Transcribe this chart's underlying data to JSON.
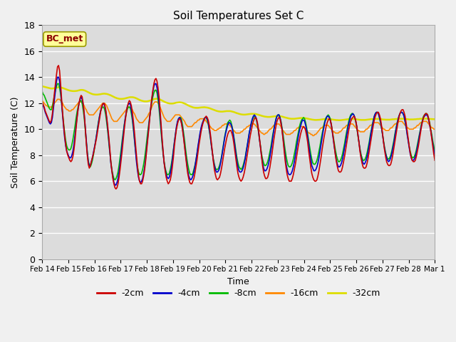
{
  "title": "Soil Temperatures Set C",
  "xlabel": "Time",
  "ylabel": "Soil Temperature (C)",
  "ylim": [
    0,
    18
  ],
  "fig_facecolor": "#f0f0f0",
  "ax_facecolor": "#e0e0e0",
  "annotation": "BC_met",
  "series": {
    "-2cm": {
      "color": "#cc0000",
      "lw": 1.2
    },
    "-4cm": {
      "color": "#0000cc",
      "lw": 1.2
    },
    "-8cm": {
      "color": "#00bb00",
      "lw": 1.2
    },
    "-16cm": {
      "color": "#ff8800",
      "lw": 1.2
    },
    "-32cm": {
      "color": "#dddd00",
      "lw": 1.8
    }
  },
  "xticks": [
    "Feb 14",
    "Feb 15",
    "Feb 16",
    "Feb 17",
    "Feb 18",
    "Feb 19",
    "Feb 20",
    "Feb 21",
    "Feb 22",
    "Feb 23",
    "Feb 24",
    "Feb 25",
    "Feb 26",
    "Feb 27",
    "Feb 28",
    "Mar 1"
  ],
  "yticks": [
    0,
    2,
    4,
    6,
    8,
    10,
    12,
    14,
    16,
    18
  ],
  "n_days": 16,
  "pts_per_day": 24,
  "t_2cm": [
    12.1,
    11.9,
    11.7,
    11.4,
    11.2,
    11.0,
    10.8,
    10.6,
    10.5,
    10.7,
    11.2,
    12.0,
    12.8,
    13.5,
    14.2,
    14.8,
    14.9,
    14.5,
    13.5,
    12.3,
    11.2,
    10.3,
    9.5,
    8.8,
    8.3,
    8.0,
    7.8,
    7.6,
    7.5,
    7.6,
    7.9,
    8.4,
    9.1,
    10.0,
    10.8,
    11.5,
    12.0,
    12.4,
    12.6,
    12.5,
    12.0,
    11.2,
    10.2,
    9.0,
    8.0,
    7.3,
    7.0,
    7.2,
    7.5,
    7.8,
    8.1,
    8.5,
    8.9,
    9.3,
    9.8,
    10.3,
    10.8,
    11.3,
    11.7,
    11.9,
    12.0,
    11.9,
    11.5,
    10.9,
    10.2,
    9.4,
    8.5,
    7.5,
    6.8,
    6.2,
    5.8,
    5.5,
    5.4,
    5.5,
    5.8,
    6.3,
    6.9,
    7.6,
    8.3,
    9.1,
    9.9,
    10.6,
    11.2,
    11.7,
    12.0,
    12.2,
    12.1,
    11.8,
    11.3,
    10.6,
    9.8,
    8.9,
    8.0,
    7.1,
    6.4,
    6.0,
    5.8,
    5.8,
    6.0,
    6.4,
    6.9,
    7.6,
    8.4,
    9.2,
    10.0,
    10.9,
    11.7,
    12.4,
    13.0,
    13.5,
    13.8,
    13.9,
    13.7,
    13.2,
    12.5,
    11.5,
    10.4,
    9.3,
    8.3,
    7.4,
    6.8,
    6.3,
    6.0,
    5.8,
    5.9,
    6.1,
    6.5,
    7.1,
    7.8,
    8.7,
    9.4,
    10.0,
    10.4,
    10.7,
    10.8,
    10.7,
    10.4,
    9.9,
    9.3,
    8.6,
    7.9,
    7.2,
    6.6,
    6.2,
    5.9,
    5.8,
    5.8,
    6.0,
    6.2,
    6.6,
    7.1,
    7.6,
    8.2,
    8.8,
    9.3,
    9.8,
    10.2,
    10.5,
    10.7,
    10.9,
    11.0,
    10.9,
    10.7,
    10.3,
    9.7,
    9.0,
    8.3,
    7.5,
    6.9,
    6.5,
    6.2,
    6.1,
    6.2,
    6.3,
    6.6,
    7.0,
    7.5,
    8.0,
    8.5,
    8.9,
    9.3,
    9.6,
    9.8,
    9.9,
    9.9,
    9.7,
    9.4,
    8.9,
    8.3,
    7.7,
    7.1,
    6.6,
    6.3,
    6.1,
    6.0,
    6.1,
    6.3,
    6.6,
    7.0,
    7.5,
    8.0,
    8.5,
    9.0,
    9.5,
    9.9,
    10.3,
    10.6,
    10.8,
    10.9,
    10.8,
    10.5,
    10.0,
    9.3,
    8.6,
    7.9,
    7.2,
    6.7,
    6.4,
    6.2,
    6.2,
    6.3,
    6.6,
    7.0,
    7.5,
    8.0,
    8.6,
    9.2,
    9.7,
    10.2,
    10.6,
    10.8,
    10.9,
    10.8,
    10.4,
    9.9,
    9.2,
    8.4,
    7.6,
    7.0,
    6.5,
    6.2,
    6.0,
    6.0,
    6.0,
    6.2,
    6.5,
    6.9,
    7.3,
    7.8,
    8.3,
    8.8,
    9.2,
    9.6,
    9.9,
    10.1,
    10.2,
    10.1,
    9.9,
    9.5,
    9.0,
    8.3,
    7.7,
    7.1,
    6.6,
    6.3,
    6.1,
    6.0,
    6.0,
    6.1,
    6.4,
    6.8,
    7.3,
    7.8,
    8.4,
    8.9,
    9.4,
    9.8,
    10.2,
    10.5,
    10.7,
    10.8,
    10.7,
    10.4,
    9.9,
    9.3,
    8.7,
    8.0,
    7.5,
    7.1,
    6.8,
    6.7,
    6.7,
    6.8,
    7.1,
    7.5,
    7.9,
    8.4,
    8.9,
    9.4,
    9.9,
    10.3,
    10.6,
    10.8,
    10.9,
    11.0,
    10.9,
    10.6,
    10.2,
    9.6,
    9.0,
    8.3,
    7.8,
    7.4,
    7.1,
    7.0,
    7.0,
    7.1,
    7.4,
    7.8,
    8.3,
    8.8,
    9.3,
    9.8,
    10.3,
    10.7,
    11.0,
    11.2,
    11.3,
    11.3,
    11.1,
    10.8,
    10.3,
    9.7,
    9.0,
    8.4,
    7.9,
    7.5,
    7.3,
    7.2,
    7.2,
    7.3,
    7.6,
    8.0,
    8.5,
    9.0,
    9.5,
    10.0,
    10.5,
    10.9,
    11.2,
    11.4,
    11.5,
    11.5,
    11.3,
    11.0,
    10.5,
    9.9,
    9.3,
    8.7,
    8.2,
    7.8,
    7.6,
    7.5,
    7.5,
    7.6,
    7.9,
    8.3,
    8.7,
    9.2,
    9.7,
    10.2,
    10.6,
    10.9,
    11.1,
    11.2,
    11.2,
    11.1,
    10.8,
    10.4,
    9.9,
    9.3,
    8.7,
    8.1,
    7.6
  ],
  "t_4cm": [
    12.0,
    11.8,
    11.6,
    11.3,
    11.1,
    10.9,
    10.7,
    10.5,
    10.4,
    10.5,
    10.9,
    11.6,
    12.3,
    13.0,
    13.7,
    14.0,
    14.0,
    13.7,
    13.0,
    12.0,
    11.0,
    10.1,
    9.3,
    8.7,
    8.3,
    8.1,
    7.9,
    7.8,
    7.8,
    8.0,
    8.3,
    8.8,
    9.5,
    10.2,
    10.9,
    11.5,
    12.0,
    12.3,
    12.5,
    12.3,
    11.9,
    11.2,
    10.2,
    9.2,
    8.2,
    7.5,
    7.1,
    7.2,
    7.5,
    7.8,
    8.2,
    8.6,
    9.0,
    9.5,
    10.0,
    10.5,
    11.0,
    11.4,
    11.7,
    11.9,
    12.0,
    11.8,
    11.4,
    10.8,
    10.0,
    9.2,
    8.3,
    7.4,
    6.8,
    6.3,
    5.9,
    5.7,
    5.7,
    5.9,
    6.2,
    6.7,
    7.3,
    8.0,
    8.8,
    9.5,
    10.2,
    10.8,
    11.3,
    11.7,
    11.9,
    12.0,
    11.9,
    11.5,
    10.9,
    10.2,
    9.3,
    8.4,
    7.5,
    6.8,
    6.3,
    6.0,
    5.9,
    6.0,
    6.2,
    6.6,
    7.1,
    7.8,
    8.6,
    9.4,
    10.2,
    11.0,
    11.7,
    12.3,
    12.9,
    13.3,
    13.5,
    13.5,
    13.2,
    12.7,
    12.0,
    11.1,
    10.1,
    9.1,
    8.2,
    7.4,
    6.9,
    6.5,
    6.3,
    6.2,
    6.3,
    6.6,
    7.0,
    7.6,
    8.3,
    9.0,
    9.6,
    10.2,
    10.6,
    10.8,
    10.9,
    10.8,
    10.5,
    10.0,
    9.4,
    8.7,
    8.0,
    7.4,
    6.8,
    6.4,
    6.2,
    6.1,
    6.2,
    6.4,
    6.7,
    7.1,
    7.6,
    8.1,
    8.7,
    9.2,
    9.7,
    10.1,
    10.4,
    10.6,
    10.8,
    10.9,
    10.9,
    10.8,
    10.5,
    10.0,
    9.5,
    8.8,
    8.2,
    7.6,
    7.2,
    6.9,
    6.7,
    6.7,
    6.8,
    7.0,
    7.4,
    7.8,
    8.3,
    8.8,
    9.3,
    9.7,
    10.0,
    10.3,
    10.5,
    10.5,
    10.4,
    10.2,
    9.8,
    9.3,
    8.7,
    8.1,
    7.5,
    7.1,
    6.8,
    6.7,
    6.7,
    6.8,
    7.0,
    7.3,
    7.7,
    8.2,
    8.7,
    9.2,
    9.7,
    10.1,
    10.5,
    10.8,
    11.0,
    11.1,
    11.0,
    10.8,
    10.4,
    9.9,
    9.2,
    8.6,
    7.9,
    7.4,
    7.0,
    6.8,
    6.8,
    6.9,
    7.1,
    7.4,
    7.8,
    8.3,
    8.8,
    9.4,
    9.9,
    10.4,
    10.7,
    11.0,
    11.1,
    11.1,
    10.9,
    10.5,
    10.0,
    9.3,
    8.6,
    7.9,
    7.3,
    6.9,
    6.6,
    6.5,
    6.5,
    6.6,
    6.8,
    7.1,
    7.5,
    8.0,
    8.5,
    9.0,
    9.5,
    9.9,
    10.2,
    10.5,
    10.7,
    10.7,
    10.6,
    10.3,
    9.9,
    9.4,
    8.8,
    8.2,
    7.7,
    7.2,
    7.0,
    6.8,
    6.8,
    6.9,
    7.1,
    7.4,
    7.8,
    8.3,
    8.8,
    9.3,
    9.8,
    10.2,
    10.6,
    10.8,
    11.0,
    11.0,
    10.9,
    10.7,
    10.3,
    9.8,
    9.2,
    8.6,
    8.1,
    7.6,
    7.3,
    7.1,
    7.1,
    7.2,
    7.4,
    7.7,
    8.1,
    8.6,
    9.0,
    9.5,
    10.0,
    10.4,
    10.7,
    11.0,
    11.1,
    11.2,
    11.1,
    10.9,
    10.6,
    10.1,
    9.6,
    9.0,
    8.4,
    7.9,
    7.6,
    7.4,
    7.3,
    7.4,
    7.6,
    7.9,
    8.3,
    8.8,
    9.3,
    9.8,
    10.2,
    10.6,
    11.0,
    11.2,
    11.3,
    11.3,
    11.2,
    10.9,
    10.6,
    10.1,
    9.6,
    9.0,
    8.5,
    8.1,
    7.8,
    7.6,
    7.5,
    7.6,
    7.8,
    8.1,
    8.5,
    8.9,
    9.4,
    9.9,
    10.3,
    10.7,
    11.0,
    11.2,
    11.3,
    11.3,
    11.2,
    11.0,
    10.6,
    10.2,
    9.6,
    9.1,
    8.6,
    8.1,
    7.8,
    7.6,
    7.6,
    7.7,
    7.9,
    8.2,
    8.6,
    9.0,
    9.5,
    9.9,
    10.3,
    10.6,
    10.9,
    11.0,
    11.1,
    11.1,
    11.0,
    10.7,
    10.3,
    9.9,
    9.4,
    8.9,
    8.4,
    7.9
  ],
  "t_8cm": [
    12.9,
    12.7,
    12.6,
    12.4,
    12.2,
    12.0,
    11.8,
    11.6,
    11.5,
    11.5,
    11.8,
    12.2,
    12.6,
    13.0,
    13.3,
    13.5,
    13.5,
    13.2,
    12.7,
    12.0,
    11.2,
    10.4,
    9.7,
    9.1,
    8.7,
    8.5,
    8.4,
    8.4,
    8.5,
    8.8,
    9.2,
    9.7,
    10.2,
    10.8,
    11.3,
    11.7,
    12.0,
    12.2,
    12.2,
    12.0,
    11.5,
    10.9,
    10.0,
    9.1,
    8.3,
    7.6,
    7.2,
    7.1,
    7.3,
    7.6,
    8.0,
    8.5,
    9.0,
    9.5,
    10.1,
    10.6,
    11.0,
    11.4,
    11.6,
    11.7,
    11.7,
    11.5,
    11.1,
    10.5,
    9.8,
    9.0,
    8.2,
    7.5,
    6.9,
    6.5,
    6.2,
    6.1,
    6.2,
    6.4,
    6.7,
    7.2,
    7.8,
    8.4,
    9.1,
    9.7,
    10.3,
    10.8,
    11.2,
    11.5,
    11.7,
    11.7,
    11.6,
    11.2,
    10.7,
    10.0,
    9.2,
    8.4,
    7.7,
    7.1,
    6.7,
    6.5,
    6.5,
    6.6,
    6.9,
    7.3,
    7.8,
    8.4,
    9.1,
    9.8,
    10.4,
    11.0,
    11.6,
    12.1,
    12.5,
    12.8,
    13.0,
    13.0,
    12.8,
    12.3,
    11.6,
    10.7,
    9.8,
    8.9,
    8.1,
    7.5,
    7.0,
    6.7,
    6.5,
    6.5,
    6.6,
    6.9,
    7.3,
    7.8,
    8.4,
    9.0,
    9.6,
    10.1,
    10.5,
    10.8,
    10.9,
    10.9,
    10.7,
    10.3,
    9.7,
    9.1,
    8.4,
    7.8,
    7.3,
    6.9,
    6.6,
    6.5,
    6.5,
    6.6,
    6.9,
    7.2,
    7.6,
    8.1,
    8.6,
    9.1,
    9.6,
    10.0,
    10.3,
    10.6,
    10.8,
    10.9,
    10.9,
    10.7,
    10.4,
    9.9,
    9.4,
    8.8,
    8.2,
    7.7,
    7.3,
    7.0,
    6.9,
    6.9,
    7.0,
    7.2,
    7.5,
    7.9,
    8.4,
    8.9,
    9.4,
    9.8,
    10.2,
    10.5,
    10.6,
    10.7,
    10.6,
    10.3,
    9.9,
    9.4,
    8.9,
    8.3,
    7.8,
    7.4,
    7.1,
    7.0,
    6.9,
    7.0,
    7.2,
    7.5,
    7.8,
    8.3,
    8.7,
    9.2,
    9.7,
    10.1,
    10.4,
    10.7,
    10.9,
    11.0,
    10.9,
    10.7,
    10.3,
    9.8,
    9.2,
    8.7,
    8.1,
    7.7,
    7.4,
    7.2,
    7.2,
    7.3,
    7.5,
    7.8,
    8.2,
    8.6,
    9.1,
    9.6,
    10.0,
    10.4,
    10.8,
    11.0,
    11.1,
    11.1,
    10.9,
    10.6,
    10.1,
    9.6,
    9.0,
    8.4,
    7.9,
    7.5,
    7.2,
    7.1,
    7.1,
    7.2,
    7.4,
    7.7,
    8.1,
    8.5,
    9.0,
    9.4,
    9.8,
    10.2,
    10.5,
    10.7,
    10.8,
    10.9,
    10.8,
    10.5,
    10.1,
    9.6,
    9.1,
    8.6,
    8.1,
    7.7,
    7.4,
    7.3,
    7.3,
    7.4,
    7.6,
    7.9,
    8.3,
    8.7,
    9.2,
    9.6,
    10.0,
    10.4,
    10.7,
    10.9,
    11.0,
    11.1,
    11.0,
    10.8,
    10.4,
    9.9,
    9.4,
    8.9,
    8.4,
    8.0,
    7.7,
    7.5,
    7.5,
    7.6,
    7.8,
    8.1,
    8.5,
    8.9,
    9.4,
    9.8,
    10.2,
    10.6,
    10.9,
    11.1,
    11.2,
    11.2,
    11.1,
    10.9,
    10.5,
    10.1,
    9.5,
    9.0,
    8.5,
    8.1,
    7.8,
    7.6,
    7.6,
    7.7,
    7.9,
    8.2,
    8.6,
    9.0,
    9.5,
    9.9,
    10.3,
    10.7,
    11.0,
    11.2,
    11.3,
    11.3,
    11.2,
    10.9,
    10.5,
    10.1,
    9.6,
    9.1,
    8.6,
    8.2,
    7.9,
    7.7,
    7.7,
    7.8,
    8.0,
    8.3,
    8.7,
    9.1,
    9.6,
    10.0,
    10.4,
    10.7,
    11.0,
    11.2,
    11.3,
    11.3,
    11.2,
    11.0,
    10.6,
    10.2,
    9.7,
    9.2,
    8.7,
    8.3,
    8.0,
    7.8,
    7.8,
    7.9,
    8.1,
    8.4,
    8.8,
    9.2,
    9.6,
    10.0,
    10.4,
    10.7,
    11.0,
    11.1,
    11.2,
    11.2,
    11.1,
    10.8,
    10.5,
    10.0,
    9.6,
    9.1,
    8.7,
    8.2
  ],
  "t_16cm": [
    12.2,
    12.1,
    12.0,
    11.9,
    11.8,
    11.8,
    11.7,
    11.7,
    11.7,
    11.7,
    11.8,
    11.9,
    12.0,
    12.1,
    12.2,
    12.3,
    12.3,
    12.3,
    12.2,
    12.1,
    12.0,
    11.8,
    11.7,
    11.6,
    11.5,
    11.5,
    11.4,
    11.4,
    11.4,
    11.5,
    11.5,
    11.6,
    11.7,
    11.8,
    11.9,
    12.0,
    12.1,
    12.1,
    12.1,
    12.0,
    11.9,
    11.8,
    11.6,
    11.5,
    11.3,
    11.2,
    11.1,
    11.1,
    11.1,
    11.1,
    11.1,
    11.2,
    11.3,
    11.4,
    11.5,
    11.6,
    11.7,
    11.8,
    11.9,
    12.0,
    12.0,
    12.0,
    11.9,
    11.8,
    11.6,
    11.4,
    11.2,
    11.0,
    10.8,
    10.7,
    10.6,
    10.6,
    10.6,
    10.6,
    10.7,
    10.8,
    10.9,
    11.0,
    11.1,
    11.2,
    11.3,
    11.4,
    11.5,
    11.6,
    11.7,
    11.7,
    11.7,
    11.6,
    11.5,
    11.3,
    11.2,
    11.0,
    10.8,
    10.7,
    10.6,
    10.5,
    10.5,
    10.5,
    10.5,
    10.6,
    10.7,
    10.8,
    10.9,
    11.0,
    11.2,
    11.3,
    11.5,
    11.7,
    11.9,
    12.0,
    12.1,
    12.1,
    12.1,
    12.0,
    11.9,
    11.7,
    11.5,
    11.3,
    11.1,
    10.9,
    10.8,
    10.7,
    10.6,
    10.6,
    10.6,
    10.6,
    10.7,
    10.8,
    10.9,
    11.0,
    11.1,
    11.1,
    11.1,
    11.1,
    11.1,
    11.0,
    10.9,
    10.8,
    10.7,
    10.6,
    10.4,
    10.3,
    10.2,
    10.2,
    10.2,
    10.2,
    10.2,
    10.3,
    10.4,
    10.5,
    10.5,
    10.6,
    10.7,
    10.7,
    10.8,
    10.8,
    10.8,
    10.8,
    10.8,
    10.7,
    10.6,
    10.5,
    10.4,
    10.3,
    10.2,
    10.1,
    10.0,
    10.0,
    9.9,
    9.9,
    9.9,
    10.0,
    10.0,
    10.1,
    10.1,
    10.2,
    10.3,
    10.3,
    10.4,
    10.4,
    10.4,
    10.4,
    10.4,
    10.3,
    10.2,
    10.1,
    10.0,
    9.9,
    9.8,
    9.7,
    9.7,
    9.7,
    9.7,
    9.7,
    9.8,
    9.8,
    9.9,
    10.0,
    10.0,
    10.1,
    10.2,
    10.2,
    10.3,
    10.3,
    10.4,
    10.4,
    10.4,
    10.4,
    10.3,
    10.2,
    10.1,
    10.0,
    9.9,
    9.8,
    9.7,
    9.7,
    9.6,
    9.6,
    9.7,
    9.7,
    9.8,
    9.9,
    10.0,
    10.0,
    10.1,
    10.2,
    10.3,
    10.3,
    10.4,
    10.4,
    10.4,
    10.4,
    10.3,
    10.2,
    10.0,
    9.9,
    9.8,
    9.7,
    9.6,
    9.6,
    9.6,
    9.6,
    9.6,
    9.7,
    9.7,
    9.8,
    9.9,
    9.9,
    10.0,
    10.1,
    10.1,
    10.2,
    10.2,
    10.2,
    10.2,
    10.2,
    10.1,
    10.0,
    9.9,
    9.8,
    9.7,
    9.7,
    9.6,
    9.6,
    9.5,
    9.5,
    9.6,
    9.6,
    9.7,
    9.8,
    9.9,
    10.0,
    10.1,
    10.1,
    10.2,
    10.3,
    10.3,
    10.3,
    10.3,
    10.3,
    10.2,
    10.1,
    10.0,
    9.9,
    9.8,
    9.8,
    9.7,
    9.7,
    9.7,
    9.7,
    9.8,
    9.8,
    9.9,
    10.0,
    10.1,
    10.1,
    10.2,
    10.3,
    10.3,
    10.4,
    10.4,
    10.4,
    10.4,
    10.4,
    10.3,
    10.2,
    10.1,
    10.0,
    9.9,
    9.9,
    9.8,
    9.8,
    9.8,
    9.8,
    9.8,
    9.9,
    10.0,
    10.0,
    10.1,
    10.2,
    10.3,
    10.3,
    10.4,
    10.5,
    10.5,
    10.5,
    10.5,
    10.5,
    10.5,
    10.4,
    10.3,
    10.2,
    10.1,
    10.0,
    10.0,
    9.9,
    9.9,
    9.9,
    9.9,
    10.0,
    10.1,
    10.1,
    10.2,
    10.3,
    10.4,
    10.4,
    10.5,
    10.5,
    10.6,
    10.6,
    10.6,
    10.6,
    10.5,
    10.4,
    10.3,
    10.2,
    10.1,
    10.1,
    10.0,
    10.0,
    10.0,
    10.0,
    10.0,
    10.1,
    10.1,
    10.2,
    10.3,
    10.3,
    10.4,
    10.5,
    10.5,
    10.6,
    10.6,
    10.6,
    10.6,
    10.6,
    10.5,
    10.4,
    10.3,
    10.2,
    10.1,
    10.1,
    10.0,
    10.0
  ],
  "t_32cm": [
    13.3,
    13.28,
    13.26,
    13.24,
    13.22,
    13.2,
    13.18,
    13.16,
    13.14,
    13.13,
    13.13,
    13.14,
    13.15,
    13.17,
    13.19,
    13.21,
    13.22,
    13.22,
    13.21,
    13.19,
    13.17,
    13.14,
    13.11,
    13.08,
    13.05,
    13.02,
    12.99,
    12.97,
    12.95,
    12.94,
    12.93,
    12.93,
    12.93,
    12.94,
    12.95,
    12.97,
    12.99,
    13.01,
    13.02,
    13.02,
    13.01,
    12.99,
    12.96,
    12.92,
    12.88,
    12.84,
    12.8,
    12.76,
    12.73,
    12.7,
    12.68,
    12.67,
    12.66,
    12.66,
    12.66,
    12.67,
    12.68,
    12.69,
    12.71,
    12.72,
    12.73,
    12.73,
    12.72,
    12.71,
    12.69,
    12.66,
    12.63,
    12.6,
    12.56,
    12.52,
    12.48,
    12.44,
    12.41,
    12.38,
    12.36,
    12.34,
    12.33,
    12.33,
    12.33,
    12.34,
    12.35,
    12.37,
    12.39,
    12.41,
    12.43,
    12.45,
    12.46,
    12.46,
    12.46,
    12.45,
    12.43,
    12.4,
    12.37,
    12.33,
    12.29,
    12.25,
    12.22,
    12.19,
    12.17,
    12.15,
    12.14,
    12.14,
    12.14,
    12.15,
    12.17,
    12.19,
    12.22,
    12.25,
    12.28,
    12.31,
    12.33,
    12.34,
    12.34,
    12.33,
    12.31,
    12.28,
    12.24,
    12.2,
    12.16,
    12.12,
    12.08,
    12.05,
    12.02,
    12.0,
    11.98,
    11.97,
    11.97,
    11.97,
    11.98,
    12.0,
    12.02,
    12.04,
    12.05,
    12.06,
    12.07,
    12.06,
    12.05,
    12.03,
    12.0,
    11.97,
    11.93,
    11.89,
    11.85,
    11.81,
    11.77,
    11.74,
    11.71,
    11.68,
    11.66,
    11.65,
    11.64,
    11.64,
    11.64,
    11.65,
    11.66,
    11.67,
    11.68,
    11.68,
    11.69,
    11.68,
    11.67,
    11.66,
    11.64,
    11.62,
    11.59,
    11.56,
    11.53,
    11.5,
    11.47,
    11.44,
    11.41,
    11.39,
    11.37,
    11.36,
    11.35,
    11.35,
    11.35,
    11.36,
    11.37,
    11.38,
    11.39,
    11.39,
    11.39,
    11.39,
    11.38,
    11.36,
    11.34,
    11.32,
    11.29,
    11.26,
    11.23,
    11.21,
    11.18,
    11.16,
    11.14,
    11.13,
    11.12,
    11.12,
    11.12,
    11.13,
    11.14,
    11.15,
    11.16,
    11.17,
    11.18,
    11.18,
    11.18,
    11.18,
    11.17,
    11.15,
    11.13,
    11.11,
    11.08,
    11.06,
    11.03,
    11.01,
    10.99,
    10.97,
    10.96,
    10.95,
    10.94,
    10.94,
    10.94,
    10.95,
    10.96,
    10.97,
    10.98,
    10.99,
    11.0,
    11.01,
    11.01,
    11.01,
    11.0,
    10.98,
    10.97,
    10.95,
    10.92,
    10.9,
    10.88,
    10.86,
    10.84,
    10.82,
    10.81,
    10.8,
    10.8,
    10.8,
    10.8,
    10.81,
    10.82,
    10.83,
    10.84,
    10.85,
    10.86,
    10.86,
    10.86,
    10.86,
    10.85,
    10.84,
    10.82,
    10.81,
    10.79,
    10.77,
    10.76,
    10.74,
    10.73,
    10.72,
    10.71,
    10.71,
    10.71,
    10.72,
    10.72,
    10.73,
    10.74,
    10.75,
    10.76,
    10.77,
    10.78,
    10.78,
    10.78,
    10.78,
    10.78,
    10.77,
    10.76,
    10.74,
    10.73,
    10.72,
    10.71,
    10.7,
    10.7,
    10.69,
    10.69,
    10.69,
    10.7,
    10.71,
    10.72,
    10.73,
    10.74,
    10.75,
    10.76,
    10.77,
    10.78,
    10.78,
    10.78,
    10.78,
    10.78,
    10.77,
    10.76,
    10.75,
    10.74,
    10.73,
    10.72,
    10.71,
    10.71,
    10.71,
    10.71,
    10.71,
    10.72,
    10.73,
    10.74,
    10.75,
    10.76,
    10.77,
    10.77,
    10.78,
    10.79,
    10.79,
    10.79,
    10.79,
    10.79,
    10.78,
    10.77,
    10.76,
    10.75,
    10.74,
    10.74,
    10.73,
    10.73,
    10.73,
    10.73,
    10.73,
    10.74,
    10.75,
    10.76,
    10.76,
    10.77,
    10.78,
    10.79,
    10.79,
    10.8,
    10.8,
    10.8,
    10.8,
    10.8,
    10.79,
    10.78,
    10.77,
    10.77,
    10.76,
    10.75,
    10.75,
    10.75,
    10.75,
    10.75,
    10.76,
    10.76,
    10.77,
    10.78,
    10.78,
    10.79,
    10.8,
    10.8,
    10.81,
    10.81,
    10.81,
    10.81,
    10.81,
    10.8,
    10.8,
    10.79,
    10.78,
    10.78,
    10.77,
    10.77,
    10.76
  ]
}
